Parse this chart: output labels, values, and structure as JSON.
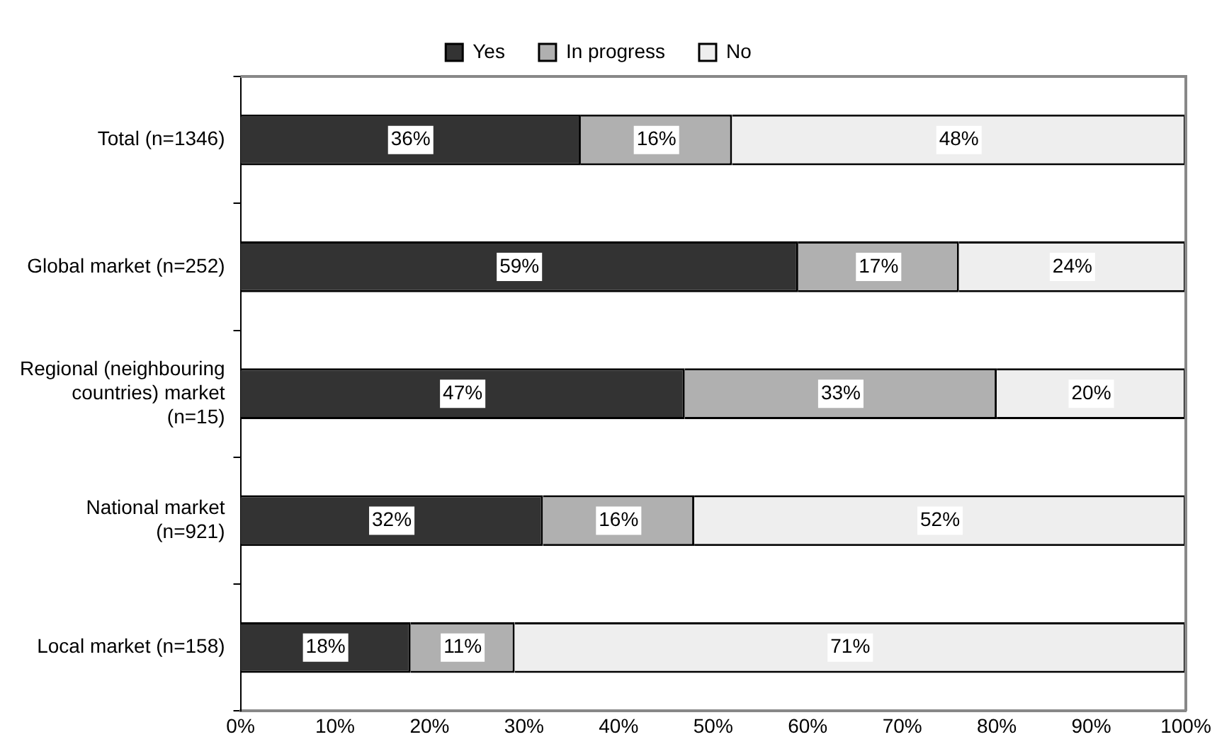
{
  "chart_data": {
    "type": "bar",
    "orientation": "horizontal",
    "stacked": true,
    "categories": [
      "Total (n=1346)",
      "Global market (n=252)",
      "Regional (neighbouring\ncountries) market\n(n=15)",
      "National market\n(n=921)",
      "Local market (n=158)"
    ],
    "series": [
      {
        "name": "Yes",
        "color": "#333333",
        "values": [
          36,
          59,
          47,
          32,
          18
        ],
        "value_labels": [
          "36%",
          "59%",
          "47%",
          "32%",
          "18%"
        ]
      },
      {
        "name": "In progress",
        "color": "#b0b0b0",
        "values": [
          16,
          17,
          33,
          16,
          11
        ],
        "value_labels": [
          "16%",
          "17%",
          "33%",
          "16%",
          "11%"
        ]
      },
      {
        "name": "No",
        "color": "#eeeeee",
        "values": [
          48,
          24,
          20,
          52,
          71
        ],
        "value_labels": [
          "48%",
          "24%",
          "20%",
          "52%",
          "71%"
        ]
      }
    ],
    "xlim": [
      0,
      100
    ],
    "xticks": [
      {
        "value": 0,
        "label": "0%"
      },
      {
        "value": 10,
        "label": "10%"
      },
      {
        "value": 20,
        "label": "20%"
      },
      {
        "value": 30,
        "label": "30%"
      },
      {
        "value": 40,
        "label": "40%"
      },
      {
        "value": 50,
        "label": "50%"
      },
      {
        "value": 60,
        "label": "60%"
      },
      {
        "value": 70,
        "label": "70%"
      },
      {
        "value": 80,
        "label": "80%"
      },
      {
        "value": 90,
        "label": "90%"
      },
      {
        "value": 100,
        "label": "100%"
      }
    ],
    "grid": false,
    "legend": "top"
  }
}
